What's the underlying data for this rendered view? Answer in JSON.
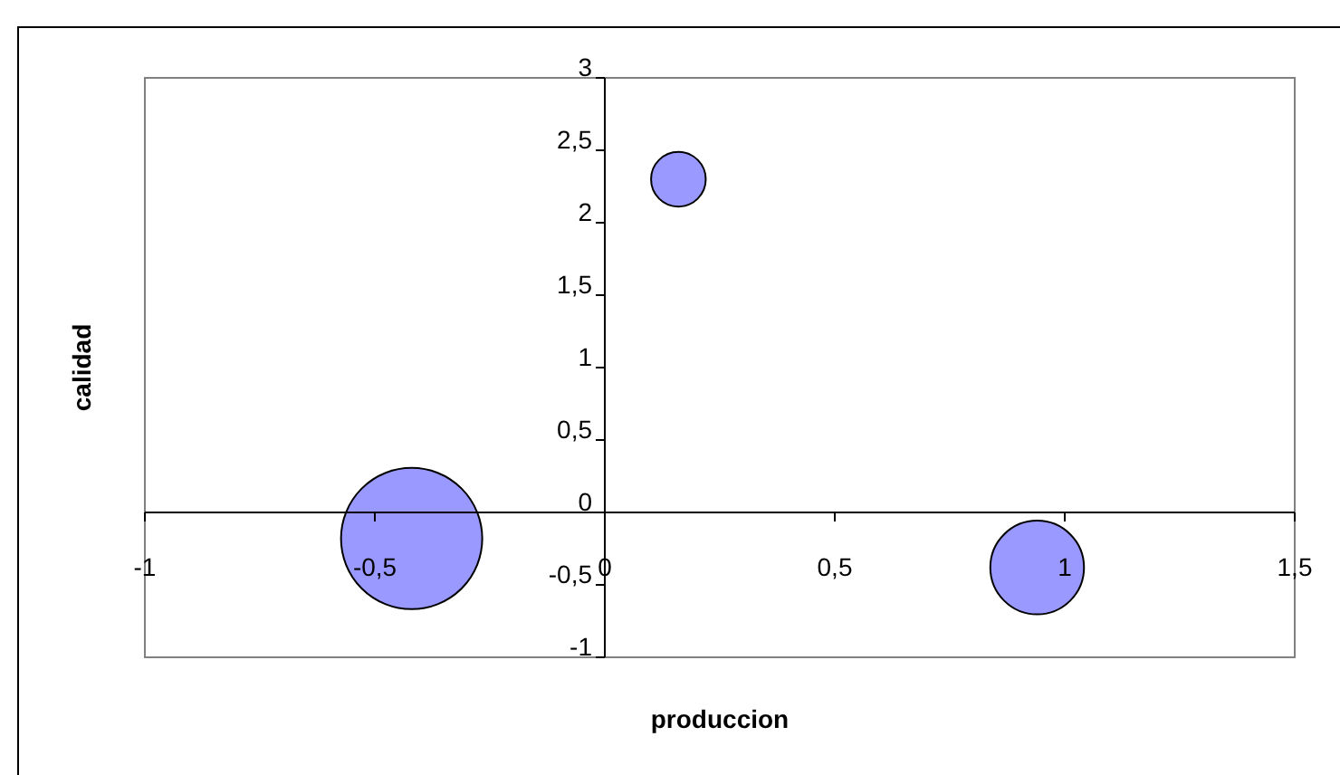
{
  "chart_data": {
    "type": "bubble",
    "xlabel": "produccion",
    "ylabel": "calidad",
    "x": [
      0.16,
      -0.42,
      0.94
    ],
    "values": [
      2.3,
      -0.18,
      -0.38
    ],
    "sizes": [
      0.15,
      1,
      0.44
    ],
    "color": "#9999ff",
    "xlim": [
      -1,
      1.5
    ],
    "xticks": [
      -1,
      {
        "value": -0.5,
        "label": "-0,5"
      },
      0,
      {
        "value": 0.5,
        "label": "0,5"
      },
      1,
      {
        "value": 1.5,
        "label": "1,5"
      }
    ],
    "ylim": [
      -1,
      3
    ],
    "yticks": [
      -1,
      {
        "value": -0.5,
        "label": "-0,5"
      },
      0,
      {
        "value": 0.5,
        "label": "0,5"
      },
      1,
      {
        "value": 1.5,
        "label": "1,5"
      },
      2,
      {
        "value": 2.5,
        "label": "2,5"
      },
      3
    ],
    "grid": false
  }
}
